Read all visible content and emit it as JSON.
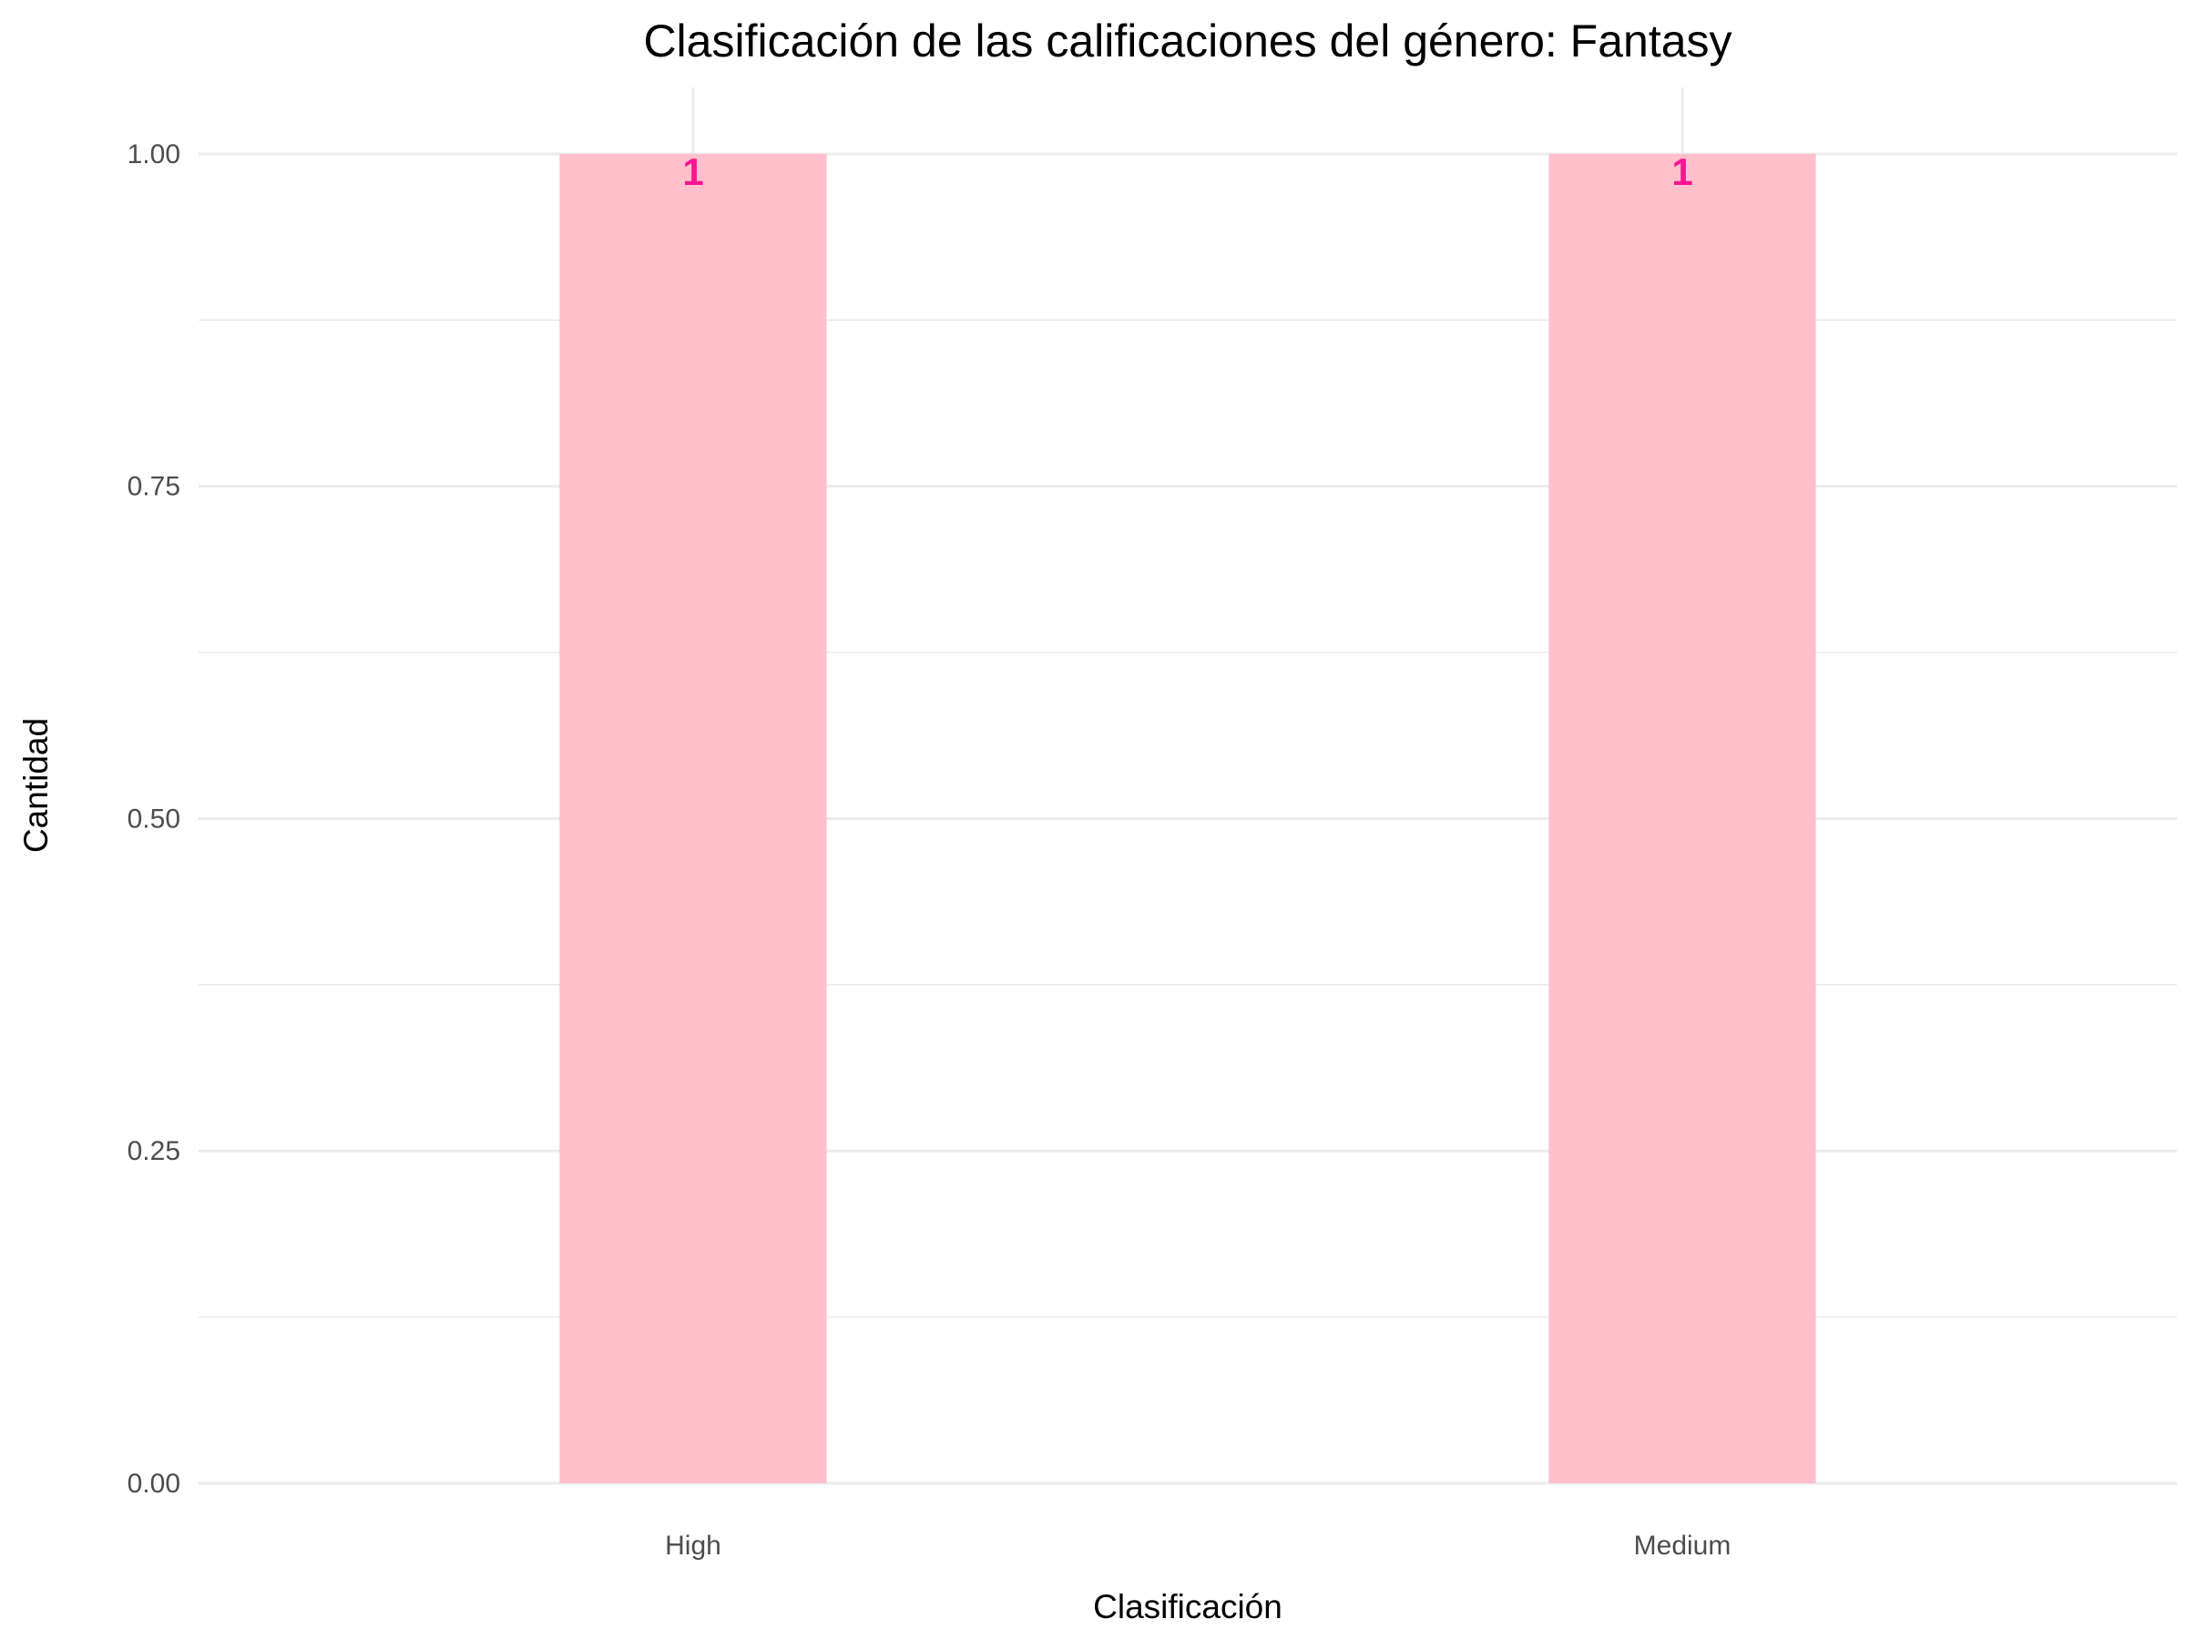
{
  "chart_data": {
    "type": "bar",
    "title": "Clasificación de las calificaciones del género: Fantasy",
    "xlabel": "Clasificación",
    "ylabel": "Cantidad",
    "categories": [
      "High",
      "Medium"
    ],
    "values": [
      1,
      1
    ],
    "data_labels": [
      "1",
      "1"
    ],
    "ylim": [
      0,
      1.05
    ],
    "yticks": [
      0,
      0.25,
      0.5,
      0.75,
      1
    ],
    "ytick_labels": [
      "0.00",
      "0.25",
      "0.50",
      "0.75",
      "1.00"
    ],
    "grid": true,
    "legend": "none",
    "colors": {
      "bar": "#ffc0cb",
      "label": "#ff1493",
      "grid": "#ebebeb"
    }
  }
}
